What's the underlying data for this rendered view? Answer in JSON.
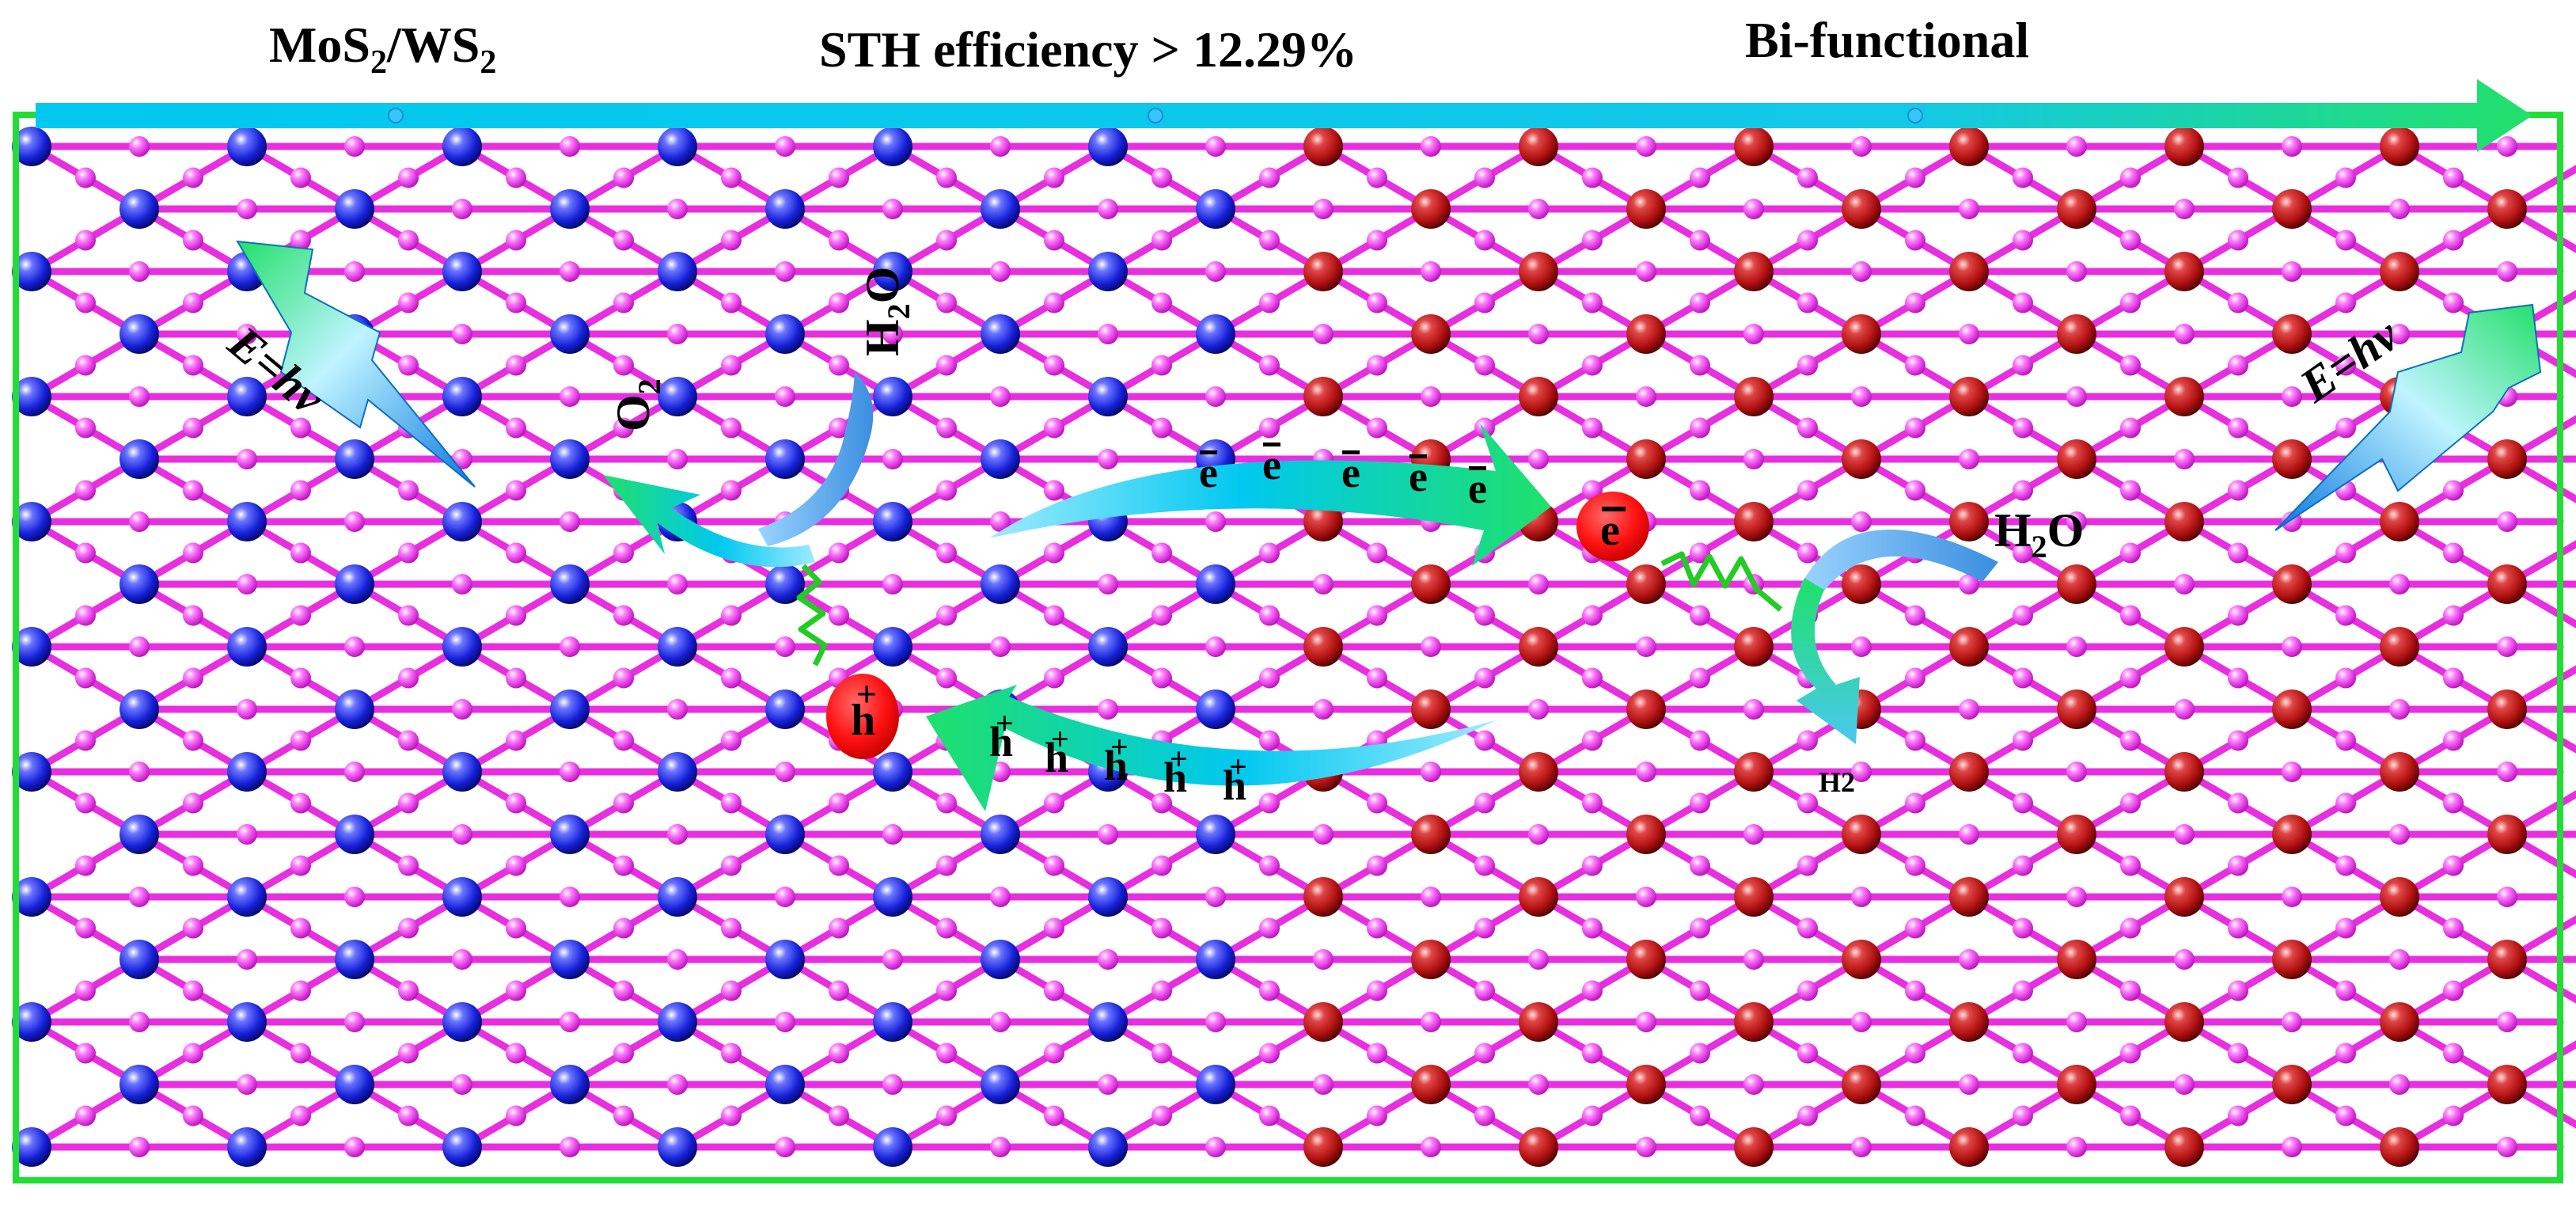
{
  "header": {
    "left": {
      "main": "MoS",
      "sub1": "2",
      "mid": "/WS",
      "sub2": "2"
    },
    "center": "STH efficiency  > 12.29%",
    "right": "Bi-functional"
  },
  "labels": {
    "photon_left": "E=hv",
    "photon_right": "E=hv",
    "o2": {
      "main": "O",
      "sub": "2"
    },
    "h2o_left": {
      "h": "H",
      "sub": "2",
      "o": "O"
    },
    "h2o_right": {
      "h": "H",
      "sub": "2",
      "o": "O"
    },
    "h2": "H2",
    "electron_symbol": "e",
    "hole_symbol": "h",
    "hole_charge": "+",
    "electron_count": 5,
    "hole_count": 5
  },
  "colors": {
    "frame": "#22dd33",
    "bond": "#e82fe0",
    "sulfur": "#ff55ff",
    "mo_atom": "#1520d8",
    "w_atom": "#b01010",
    "carrier": "#ff1111",
    "spring": "#22cc22",
    "arrow_cyan": "#00c8f0",
    "arrow_green": "#1fe06a"
  }
}
